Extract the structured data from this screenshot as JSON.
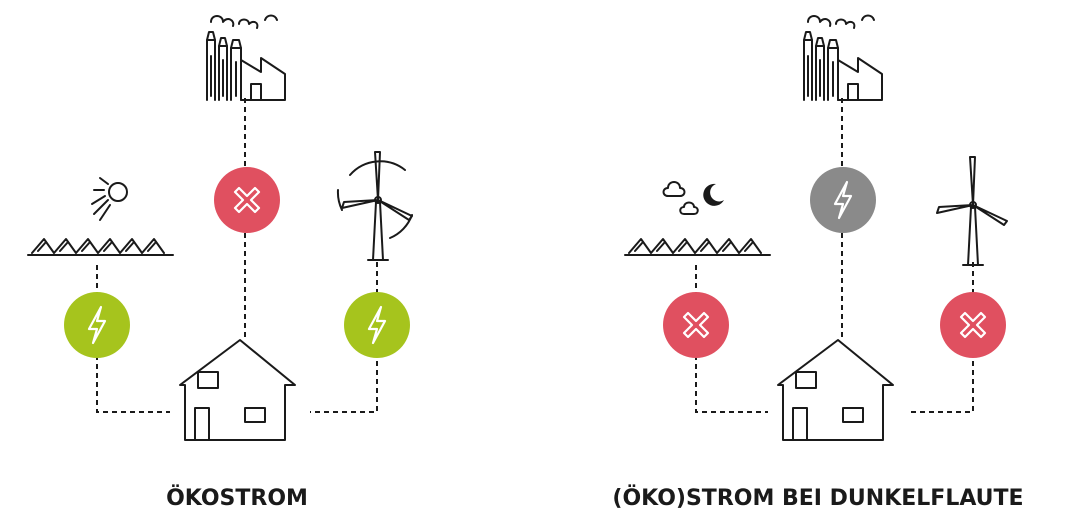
{
  "panels": [
    {
      "label": "ÖKOSTROM"
    },
    {
      "label": "(ÖKO)STROM BEI DUNKELFLAUTE"
    }
  ]
}
